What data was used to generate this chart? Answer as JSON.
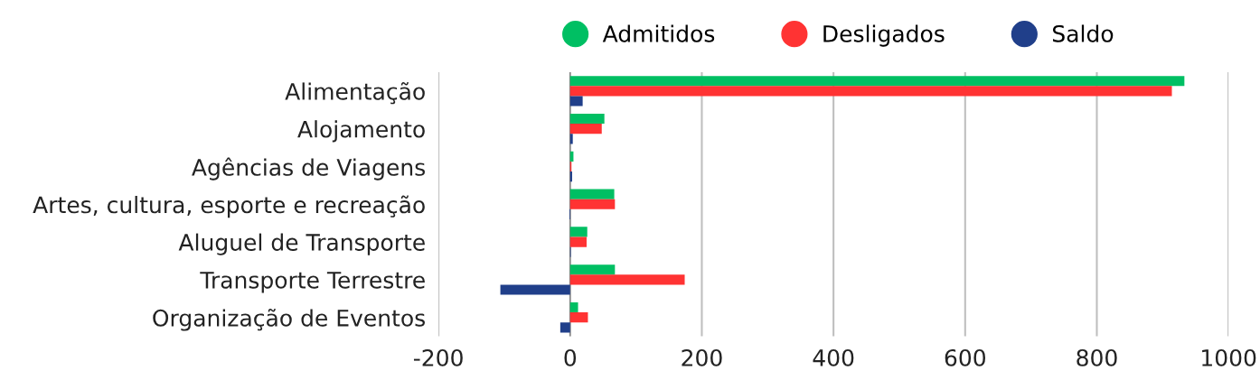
{
  "chart_data": {
    "type": "bar",
    "orientation": "horizontal",
    "categories": [
      "Alimentação",
      "Alojamento",
      "Agências de Viagens",
      "Artes, cultura, esporte e recreação",
      "Aluguel de Transporte",
      "Transporte Terrestre",
      "Organização de Eventos"
    ],
    "series": [
      {
        "name": "Admitidos",
        "color": "#00bf63",
        "values": [
          933,
          52,
          5,
          67,
          26,
          68,
          12
        ]
      },
      {
        "name": "Desligados",
        "color": "#ff3333",
        "values": [
          914,
          48,
          2,
          68,
          25,
          174,
          27
        ]
      },
      {
        "name": "Saldo",
        "color": "#203f8a",
        "values": [
          19,
          4,
          3,
          -1,
          1,
          -106,
          -15
        ]
      }
    ],
    "xlim": [
      -200,
      1000
    ],
    "xticks": [
      -200,
      0,
      200,
      400,
      600,
      800,
      1000
    ],
    "grid": "x",
    "legend": "top",
    "marker": "circle"
  }
}
